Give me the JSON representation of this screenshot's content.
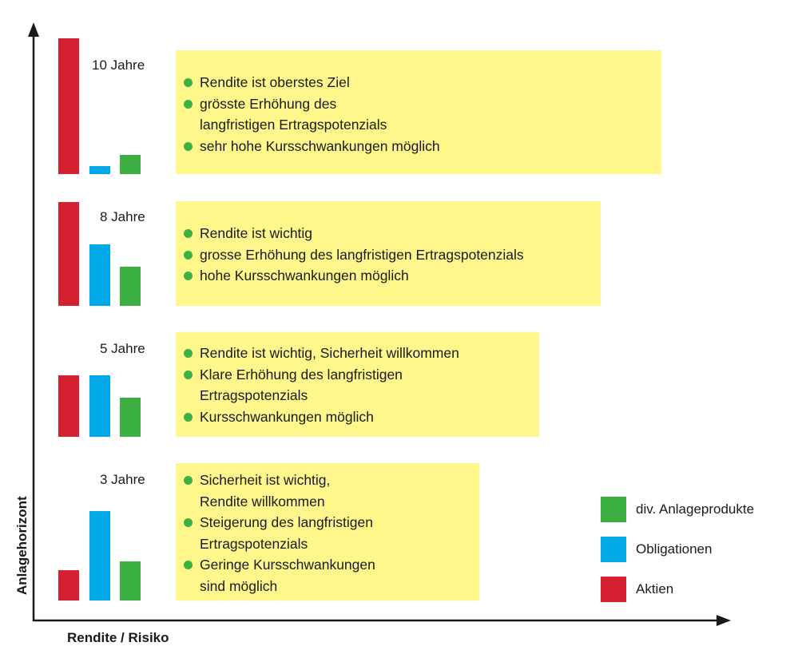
{
  "chart_data": {
    "type": "bar",
    "xlabel": "Rendite / Risiko",
    "ylabel": "Anlagehorizont",
    "colors": {
      "Aktien": "#d42030",
      "Obligationen": "#00a8e8",
      "div. Anlageprodukte": "#3cb043",
      "box": "#fff68c",
      "bullet": "#3cb043"
    },
    "series": [
      {
        "name": "Aktien",
        "color": "#d42030"
      },
      {
        "name": "Obligationen",
        "color": "#00a8e8"
      },
      {
        "name": "div. Anlageprodukte",
        "color": "#3cb043"
      }
    ],
    "legend": {
      "placement": "bottom-right",
      "items": [
        {
          "label": "div. Anlageprodukte",
          "color": "#3cb043"
        },
        {
          "label": "Obligationen",
          "color": "#00a8e8"
        },
        {
          "label": "Aktien",
          "color": "#d42030"
        }
      ]
    },
    "groups": [
      {
        "label": "10 Jahre",
        "values": {
          "Aktien": 1.0,
          "Obligationen": 0.06,
          "div. Anlageprodukte": 0.14
        },
        "bullets": [
          "Rendite ist oberstes Ziel",
          "grösste Erhöhung des\nlangfristigen Ertragspotenzials",
          "sehr hohe Kursschwankungen möglich"
        ]
      },
      {
        "label": "8 Jahre",
        "values": {
          "Aktien": 1.0,
          "Obligationen": 0.59,
          "div. Anlageprodukte": 0.38
        },
        "bullets": [
          "Rendite ist wichtig",
          "grosse Erhöhung des langfristigen Ertragspotenzials",
          "hohe Kursschwankungen möglich"
        ]
      },
      {
        "label": "5 Jahre",
        "values": {
          "Aktien": 0.59,
          "Obligationen": 0.59,
          "div. Anlageprodukte": 0.38
        },
        "bullets": [
          "Rendite ist wichtig, Sicherheit willkommen",
          "Klare Erhöhung des langfristigen\nErtragspotenzials",
          "Kursschwankungen möglich"
        ]
      },
      {
        "label": "3 Jahre",
        "values": {
          "Aktien": 0.29,
          "Obligationen": 0.86,
          "div. Anlageprodukte": 0.38
        },
        "bullets": [
          "Sicherheit ist wichtig,\nRendite willkommen",
          "Steigerung des langfristigen\nErtragspotenzials",
          "Geringe Kursschwankungen\nsind möglich"
        ]
      }
    ]
  }
}
